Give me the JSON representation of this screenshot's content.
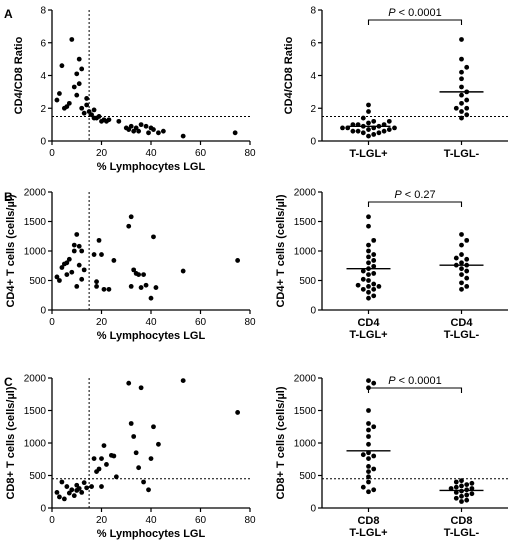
{
  "chart_data": [
    {
      "panel_label": "A",
      "type": "scatter",
      "xlabel": "% Lymphocytes LGL",
      "ylabel": "CD4/CD8 Ratio",
      "xlim": [
        0,
        80
      ],
      "ylim": [
        0,
        8
      ],
      "xticks": [
        0,
        20,
        40,
        60,
        80
      ],
      "yticks": [
        0,
        2,
        4,
        6,
        8
      ],
      "vline": 15,
      "hline": 1.5,
      "points": [
        [
          2,
          2.5
        ],
        [
          3,
          2.9
        ],
        [
          4,
          4.6
        ],
        [
          5,
          2
        ],
        [
          6,
          2.1
        ],
        [
          7,
          2.3
        ],
        [
          8,
          6.2
        ],
        [
          9,
          3.3
        ],
        [
          10,
          4.1
        ],
        [
          10,
          2.8
        ],
        [
          11,
          5
        ],
        [
          11,
          3.5
        ],
        [
          12,
          2
        ],
        [
          12,
          4.4
        ],
        [
          13,
          1.7
        ],
        [
          14,
          2.6
        ],
        [
          14,
          2.2
        ],
        [
          15,
          1.8
        ],
        [
          16,
          1.6
        ],
        [
          17,
          1.4
        ],
        [
          17,
          1.9
        ],
        [
          18,
          1.4
        ],
        [
          19,
          1.5
        ],
        [
          20,
          1.2
        ],
        [
          21,
          1.3
        ],
        [
          22,
          1.2
        ],
        [
          23,
          1.3
        ],
        [
          27,
          1.2
        ],
        [
          30,
          0.8
        ],
        [
          31,
          0.7
        ],
        [
          32,
          0.9
        ],
        [
          33,
          0.6
        ],
        [
          34,
          0.8
        ],
        [
          35,
          0.6
        ],
        [
          36,
          1
        ],
        [
          38,
          0.9
        ],
        [
          39,
          0.5
        ],
        [
          40,
          0.8
        ],
        [
          41,
          0.7
        ],
        [
          43,
          0.5
        ],
        [
          45,
          0.6
        ],
        [
          53,
          0.3
        ],
        [
          74,
          0.5
        ]
      ]
    },
    {
      "panel_label": "",
      "type": "scatter",
      "ylabel": "CD4/CD8 Ratio",
      "categories": [
        "T-LGL+",
        "T-LGL-"
      ],
      "ylim": [
        0,
        8
      ],
      "yticks": [
        0,
        2,
        4,
        6,
        8
      ],
      "hline": 1.5,
      "medians": [
        0.9,
        3.0
      ],
      "significance": "P < 0.0001",
      "groups": [
        [
          0.3,
          0.4,
          0.5,
          0.5,
          0.6,
          0.6,
          0.6,
          0.7,
          0.7,
          0.8,
          0.8,
          0.8,
          0.8,
          0.9,
          0.9,
          1,
          1,
          1,
          1.1,
          1.2,
          1.2,
          1.4,
          1.8,
          2.2
        ],
        [
          1.4,
          1.6,
          1.8,
          2,
          2,
          2.3,
          2.5,
          2.8,
          3,
          3.3,
          3.8,
          4.2,
          4.5,
          5,
          6.2
        ]
      ]
    },
    {
      "panel_label": "B",
      "type": "scatter",
      "xlabel": "% Lymphocytes LGL",
      "ylabel": "CD4+ T cells (cells/µl)",
      "xlim": [
        0,
        80
      ],
      "ylim": [
        0,
        2000
      ],
      "xticks": [
        0,
        20,
        40,
        60,
        80
      ],
      "yticks": [
        0,
        500,
        1000,
        1500,
        2000
      ],
      "vline": 15,
      "points": [
        [
          2,
          560
        ],
        [
          3,
          500
        ],
        [
          4,
          720
        ],
        [
          5,
          780
        ],
        [
          6,
          800
        ],
        [
          6,
          600
        ],
        [
          7,
          860
        ],
        [
          8,
          640
        ],
        [
          9,
          1000
        ],
        [
          9,
          1100
        ],
        [
          10,
          1280
        ],
        [
          10,
          400
        ],
        [
          11,
          1080
        ],
        [
          11,
          760
        ],
        [
          12,
          520
        ],
        [
          12,
          1000
        ],
        [
          13,
          680
        ],
        [
          17,
          940
        ],
        [
          18,
          400
        ],
        [
          18,
          480
        ],
        [
          19,
          1180
        ],
        [
          20,
          940
        ],
        [
          21,
          350
        ],
        [
          23,
          350
        ],
        [
          25,
          840
        ],
        [
          31,
          1420
        ],
        [
          32,
          400
        ],
        [
          32,
          1580
        ],
        [
          33,
          680
        ],
        [
          34,
          620
        ],
        [
          35,
          600
        ],
        [
          36,
          380
        ],
        [
          37,
          600
        ],
        [
          38,
          420
        ],
        [
          40,
          200
        ],
        [
          41,
          1240
        ],
        [
          42,
          380
        ],
        [
          53,
          660
        ],
        [
          75,
          840
        ]
      ]
    },
    {
      "panel_label": "",
      "type": "scatter",
      "ylabel": "CD4+ T cells (cells/µl)",
      "categories": [
        "CD4 T-LGL+",
        "CD4 T-LGL-"
      ],
      "ylim": [
        0,
        2000
      ],
      "yticks": [
        0,
        500,
        1000,
        1500,
        2000
      ],
      "medians": [
        700,
        760
      ],
      "significance": "P < 0.27",
      "groups": [
        [
          200,
          240,
          300,
          350,
          350,
          400,
          400,
          420,
          440,
          500,
          520,
          600,
          620,
          660,
          700,
          740,
          800,
          840,
          900,
          940,
          1000,
          1100,
          1180,
          1420,
          1580
        ],
        [
          350,
          400,
          460,
          540,
          600,
          660,
          700,
          760,
          760,
          800,
          860,
          880,
          940,
          1100,
          1180,
          1280
        ]
      ]
    },
    {
      "panel_label": "C",
      "type": "scatter",
      "xlabel": "% Lymphocytes LGL",
      "ylabel": "CD8+ T cells (cells/µl)",
      "xlim": [
        0,
        80
      ],
      "ylim": [
        0,
        2000
      ],
      "xticks": [
        0,
        20,
        40,
        60,
        80
      ],
      "yticks": [
        0,
        500,
        1000,
        1500,
        2000
      ],
      "vline": 15,
      "hline": 450,
      "points": [
        [
          2,
          240
        ],
        [
          3,
          170
        ],
        [
          4,
          400
        ],
        [
          5,
          140
        ],
        [
          6,
          330
        ],
        [
          7,
          230
        ],
        [
          8,
          280
        ],
        [
          9,
          190
        ],
        [
          10,
          350
        ],
        [
          10,
          270
        ],
        [
          11,
          300
        ],
        [
          12,
          240
        ],
        [
          13,
          390
        ],
        [
          14,
          310
        ],
        [
          16,
          330
        ],
        [
          17,
          760
        ],
        [
          18,
          560
        ],
        [
          19,
          600
        ],
        [
          20,
          760
        ],
        [
          20,
          330
        ],
        [
          21,
          960
        ],
        [
          22,
          670
        ],
        [
          24,
          810
        ],
        [
          25,
          800
        ],
        [
          26,
          480
        ],
        [
          31,
          1920
        ],
        [
          32,
          1300
        ],
        [
          33,
          1100
        ],
        [
          34,
          850
        ],
        [
          35,
          620
        ],
        [
          36,
          1850
        ],
        [
          37,
          400
        ],
        [
          39,
          280
        ],
        [
          40,
          760
        ],
        [
          41,
          1250
        ],
        [
          43,
          980
        ],
        [
          53,
          1960
        ],
        [
          75,
          1470
        ]
      ]
    },
    {
      "panel_label": "",
      "type": "scatter",
      "ylabel": "CD8+ T cells (cells/µl)",
      "categories": [
        "CD8 T-LGL+",
        "CD8 T-LGL-"
      ],
      "ylim": [
        0,
        2000
      ],
      "yticks": [
        0,
        500,
        1000,
        1500,
        2000
      ],
      "hline": 450,
      "medians": [
        880,
        270
      ],
      "significance": "P < 0.0001",
      "groups": [
        [
          250,
          280,
          320,
          400,
          480,
          560,
          600,
          640,
          760,
          800,
          820,
          850,
          980,
          1100,
          1200,
          1250,
          1300,
          1500,
          1850,
          1920,
          1960
        ],
        [
          100,
          120,
          150,
          180,
          200,
          220,
          240,
          260,
          280,
          300,
          300,
          320,
          340,
          360,
          380,
          400,
          420
        ]
      ]
    }
  ]
}
